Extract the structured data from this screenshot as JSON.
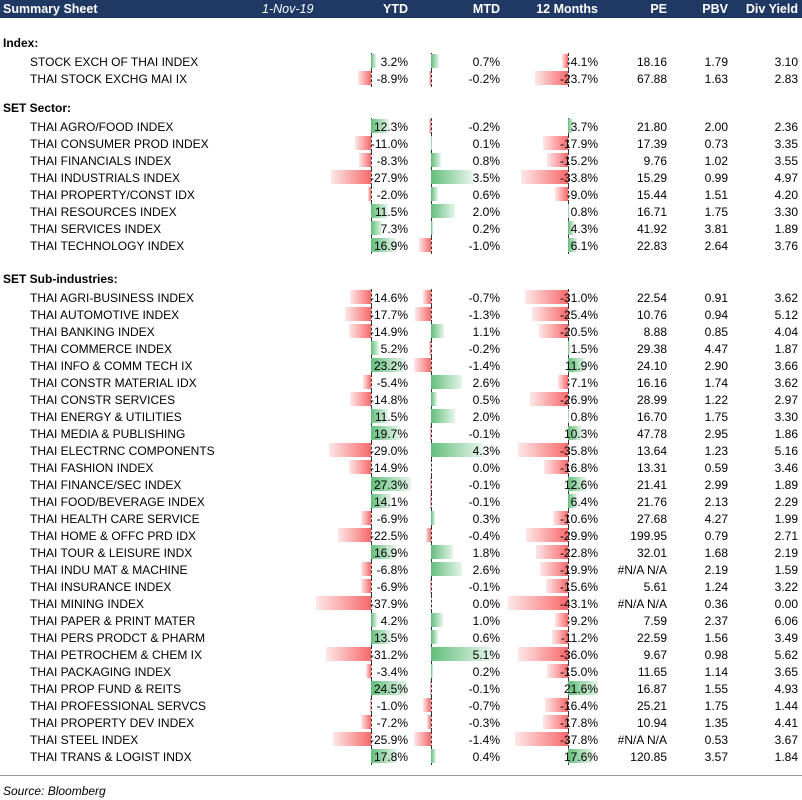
{
  "header": {
    "title": "Summary Sheet",
    "date": "1-Nov-19",
    "columns": [
      "YTD",
      "MTD",
      "12 Months",
      "PE",
      "PBV",
      "Div Yield"
    ]
  },
  "sections": [
    {
      "title": "Index:",
      "rows": [
        {
          "name": "STOCK EXCH OF THAI INDEX",
          "ytd": "3.2%",
          "mtd": "0.7%",
          "m12": "-4.1%",
          "pe": "18.16",
          "pbv": "1.79",
          "dy": "3.10"
        },
        {
          "name": "THAI STOCK EXCHG MAI IX",
          "ytd": "-8.9%",
          "mtd": "-0.2%",
          "m12": "-23.7%",
          "pe": "67.88",
          "pbv": "1.63",
          "dy": "2.83"
        }
      ]
    },
    {
      "title": "SET Sector:",
      "rows": [
        {
          "name": "THAI AGRO/FOOD INDEX",
          "ytd": "12.3%",
          "mtd": "-0.2%",
          "m12": "3.7%",
          "pe": "21.80",
          "pbv": "2.00",
          "dy": "2.36"
        },
        {
          "name": "THAI CONSUMER PROD INDEX",
          "ytd": "-11.0%",
          "mtd": "0.1%",
          "m12": "-17.9%",
          "pe": "17.39",
          "pbv": "0.73",
          "dy": "3.35"
        },
        {
          "name": "THAI FINANCIALS INDEX",
          "ytd": "-8.3%",
          "mtd": "0.8%",
          "m12": "-15.2%",
          "pe": "9.76",
          "pbv": "1.02",
          "dy": "3.55"
        },
        {
          "name": "THAI INDUSTRIALS INDEX",
          "ytd": "-27.9%",
          "mtd": "3.5%",
          "m12": "-33.8%",
          "pe": "15.29",
          "pbv": "0.99",
          "dy": "4.97"
        },
        {
          "name": "THAI PROPERTY/CONST IDX",
          "ytd": "-2.0%",
          "mtd": "0.6%",
          "m12": "-9.0%",
          "pe": "15.44",
          "pbv": "1.51",
          "dy": "4.20"
        },
        {
          "name": "THAI RESOURCES INDEX",
          "ytd": "11.5%",
          "mtd": "2.0%",
          "m12": "0.8%",
          "pe": "16.71",
          "pbv": "1.75",
          "dy": "3.30"
        },
        {
          "name": "THAI SERVICES INDEX",
          "ytd": "7.3%",
          "mtd": "0.2%",
          "m12": "4.3%",
          "pe": "41.92",
          "pbv": "3.81",
          "dy": "1.89"
        },
        {
          "name": "THAI TECHNOLOGY INDEX",
          "ytd": "16.9%",
          "mtd": "-1.0%",
          "m12": "6.1%",
          "pe": "22.83",
          "pbv": "2.64",
          "dy": "3.76"
        }
      ]
    },
    {
      "title": "SET Sub-industries:",
      "rows": [
        {
          "name": "THAI AGRI-BUSINESS INDEX",
          "ytd": "-14.6%",
          "mtd": "-0.7%",
          "m12": "-31.0%",
          "pe": "22.54",
          "pbv": "0.91",
          "dy": "3.62"
        },
        {
          "name": "THAI AUTOMOTIVE INDEX",
          "ytd": "-17.7%",
          "mtd": "-1.3%",
          "m12": "-25.4%",
          "pe": "10.76",
          "pbv": "0.94",
          "dy": "5.12"
        },
        {
          "name": "THAI BANKING INDEX",
          "ytd": "-14.9%",
          "mtd": "1.1%",
          "m12": "-20.5%",
          "pe": "8.88",
          "pbv": "0.85",
          "dy": "4.04"
        },
        {
          "name": "THAI COMMERCE INDEX",
          "ytd": "5.2%",
          "mtd": "-0.2%",
          "m12": "1.5%",
          "pe": "29.38",
          "pbv": "4.47",
          "dy": "1.87"
        },
        {
          "name": "THAI INFO & COMM TECH IX",
          "ytd": "23.2%",
          "mtd": "-1.4%",
          "m12": "11.9%",
          "pe": "24.10",
          "pbv": "2.90",
          "dy": "3.66"
        },
        {
          "name": "THAI CONSTR MATERIAL IDX",
          "ytd": "-5.4%",
          "mtd": "2.6%",
          "m12": "-7.1%",
          "pe": "16.16",
          "pbv": "1.74",
          "dy": "3.62"
        },
        {
          "name": "THAI CONSTR SERVICES",
          "ytd": "-14.8%",
          "mtd": "0.5%",
          "m12": "-26.9%",
          "pe": "28.99",
          "pbv": "1.22",
          "dy": "2.97"
        },
        {
          "name": "THAI ENERGY & UTILITIES",
          "ytd": "11.5%",
          "mtd": "2.0%",
          "m12": "0.8%",
          "pe": "16.70",
          "pbv": "1.75",
          "dy": "3.30"
        },
        {
          "name": "THAI MEDIA & PUBLISHING",
          "ytd": "19.7%",
          "mtd": "-0.1%",
          "m12": "10.3%",
          "pe": "47.78",
          "pbv": "2.95",
          "dy": "1.86"
        },
        {
          "name": "THAI ELECTRNC COMPONENTS",
          "ytd": "-29.0%",
          "mtd": "4.3%",
          "m12": "-35.8%",
          "pe": "13.64",
          "pbv": "1.23",
          "dy": "5.16"
        },
        {
          "name": "THAI FASHION INDEX",
          "ytd": "-14.9%",
          "mtd": "0.0%",
          "m12": "-16.8%",
          "pe": "13.31",
          "pbv": "0.59",
          "dy": "3.46"
        },
        {
          "name": "THAI FINANCE/SEC INDEX",
          "ytd": "27.3%",
          "mtd": "-0.1%",
          "m12": "12.6%",
          "pe": "21.41",
          "pbv": "2.99",
          "dy": "1.89"
        },
        {
          "name": "THAI FOOD/BEVERAGE INDEX",
          "ytd": "14.1%",
          "mtd": "-0.1%",
          "m12": "6.4%",
          "pe": "21.76",
          "pbv": "2.13",
          "dy": "2.29"
        },
        {
          "name": "THAI HEALTH CARE SERVICE",
          "ytd": "-6.9%",
          "mtd": "0.3%",
          "m12": "-10.6%",
          "pe": "27.68",
          "pbv": "4.27",
          "dy": "1.99"
        },
        {
          "name": "THAI HOME & OFFC PRD IDX",
          "ytd": "-22.5%",
          "mtd": "-0.4%",
          "m12": "-29.9%",
          "pe": "199.95",
          "pbv": "0.79",
          "dy": "2.71"
        },
        {
          "name": "THAI TOUR & LEISURE INDX",
          "ytd": "16.9%",
          "mtd": "1.8%",
          "m12": "-22.8%",
          "pe": "32.01",
          "pbv": "1.68",
          "dy": "2.19"
        },
        {
          "name": "THAI INDU MAT & MACHINE",
          "ytd": "-6.8%",
          "mtd": "2.6%",
          "m12": "-19.9%",
          "pe": "#N/A N/A",
          "pbv": "2.19",
          "dy": "1.59"
        },
        {
          "name": "THAI INSURANCE INDEX",
          "ytd": "-6.9%",
          "mtd": "-0.1%",
          "m12": "-15.6%",
          "pe": "5.61",
          "pbv": "1.24",
          "dy": "3.22"
        },
        {
          "name": "THAI MINING INDEX",
          "ytd": "-37.9%",
          "mtd": "0.0%",
          "m12": "-43.1%",
          "pe": "#N/A N/A",
          "pbv": "0.36",
          "dy": "0.00"
        },
        {
          "name": "THAI PAPER & PRINT MATER",
          "ytd": "4.2%",
          "mtd": "1.0%",
          "m12": "-9.2%",
          "pe": "7.59",
          "pbv": "2.37",
          "dy": "6.06"
        },
        {
          "name": "THAI PERS PRODCT & PHARM",
          "ytd": "13.5%",
          "mtd": "0.6%",
          "m12": "-11.2%",
          "pe": "22.59",
          "pbv": "1.56",
          "dy": "3.49"
        },
        {
          "name": "THAI PETROCHEM & CHEM IX",
          "ytd": "-31.2%",
          "mtd": "5.1%",
          "m12": "-36.0%",
          "pe": "9.67",
          "pbv": "0.98",
          "dy": "5.62"
        },
        {
          "name": "THAI PACKAGING INDEX",
          "ytd": "-3.4%",
          "mtd": "0.2%",
          "m12": "-15.0%",
          "pe": "11.65",
          "pbv": "1.14",
          "dy": "3.65"
        },
        {
          "name": "THAI PROP FUND & REITS",
          "ytd": "24.5%",
          "mtd": "-0.1%",
          "m12": "21.6%",
          "pe": "16.87",
          "pbv": "1.55",
          "dy": "4.93"
        },
        {
          "name": "THAI PROFESSIONAL SERVCS",
          "ytd": "-1.0%",
          "mtd": "-0.7%",
          "m12": "-16.4%",
          "pe": "25.21",
          "pbv": "1.75",
          "dy": "1.44"
        },
        {
          "name": "THAI PROPERTY DEV INDEX",
          "ytd": "-7.2%",
          "mtd": "-0.3%",
          "m12": "-17.8%",
          "pe": "10.94",
          "pbv": "1.35",
          "dy": "4.41"
        },
        {
          "name": "THAI STEEL INDEX",
          "ytd": "-25.9%",
          "mtd": "-1.4%",
          "m12": "-37.8%",
          "pe": "#N/A N/A",
          "pbv": "0.53",
          "dy": "3.67"
        },
        {
          "name": "THAI TRANS & LOGIST INDX",
          "ytd": "17.8%",
          "mtd": "0.4%",
          "m12": "17.6%",
          "pe": "120.85",
          "pbv": "3.57",
          "dy": "1.84"
        }
      ]
    }
  ],
  "source": "Source: Bloomberg",
  "colors": {
    "header_bg": "#1f3864",
    "header_text": "#ffffff",
    "positive_bar": "#63be7b",
    "negative_bar": "#f8696b"
  }
}
